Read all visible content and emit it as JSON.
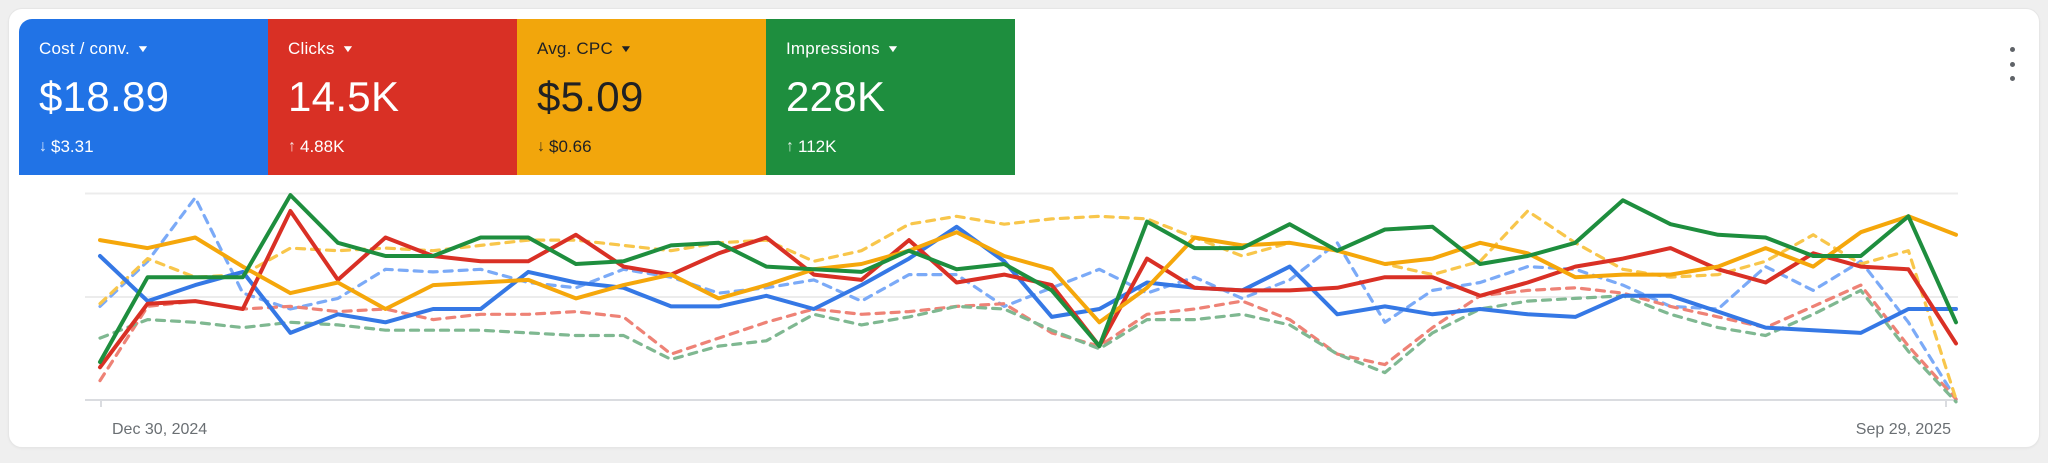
{
  "scorecards": [
    {
      "label": "Cost / conv.",
      "value": "$18.89",
      "delta_arrow": "↓",
      "delta_value": "$3.31",
      "delta_direction": "down",
      "color": "#2173E6",
      "text_color": "#FFFFFF"
    },
    {
      "label": "Clicks",
      "value": "14.5K",
      "delta_arrow": "↑",
      "delta_value": "4.88K",
      "delta_direction": "up",
      "color": "#D93025",
      "text_color": "#FFFFFF"
    },
    {
      "label": "Avg. CPC",
      "value": "$5.09",
      "delta_arrow": "↓",
      "delta_value": "$0.66",
      "delta_direction": "down",
      "color": "#F2A60C",
      "text_color": "#202124"
    },
    {
      "label": "Impressions",
      "value": "228K",
      "delta_arrow": "↑",
      "delta_value": "112K",
      "delta_direction": "up",
      "color": "#1E8E3E",
      "text_color": "#FFFFFF"
    }
  ],
  "ui": {
    "dropdown_glyph": "▼",
    "more_options_icon": "kebab-menu"
  },
  "chart_data": {
    "type": "line",
    "title": "",
    "xlabel": "",
    "ylabel": "",
    "grid": "horizontal",
    "legend_position": "none",
    "x_axis": {
      "start_label": "Dec 30, 2024",
      "end_label": "Sep 29, 2025",
      "granularity": "weekly",
      "points": 40
    },
    "y_axis": {
      "visible": false,
      "unit": "relative scale 0-100 (axis unlabeled in UI)",
      "ylim": [
        0,
        100
      ]
    },
    "series": [
      {
        "id": "cost-conv-previous",
        "name": "Cost / conv. (previous period)",
        "period": "previous",
        "style": "dotted",
        "color": "#7BAAF7",
        "values": [
          41,
          58,
          82,
          46,
          40,
          44,
          55,
          54,
          55,
          50,
          48,
          55,
          52,
          46,
          48,
          51,
          43,
          53,
          53,
          41,
          48,
          55,
          46,
          52,
          44,
          51,
          65,
          35,
          47,
          50,
          56,
          55,
          49,
          41,
          40,
          56,
          47,
          58,
          35,
          6
        ]
      },
      {
        "id": "clicks-previous",
        "name": "Clicks (previous period)",
        "period": "previous",
        "style": "dotted",
        "color": "#EE8276",
        "values": [
          13,
          41,
          43,
          40,
          41,
          39,
          40,
          36,
          38,
          38,
          39,
          37,
          23,
          29,
          35,
          40,
          38,
          39,
          41,
          42,
          31,
          26,
          38,
          40,
          43,
          36,
          23,
          19,
          33,
          45,
          47,
          48,
          46,
          41,
          37,
          33,
          41,
          49,
          26,
          6
        ]
      },
      {
        "id": "avg-cpc-previous",
        "name": "Avg. CPC (previous period)",
        "period": "previous",
        "style": "dotted",
        "color": "#F8C64B",
        "values": [
          42,
          59,
          52,
          53,
          63,
          62,
          63,
          62,
          64,
          66,
          66,
          64,
          62,
          65,
          66,
          58,
          62,
          72,
          75,
          72,
          74,
          75,
          74,
          67,
          60,
          65,
          62,
          57,
          53,
          58,
          77,
          65,
          55,
          52,
          53,
          58,
          68,
          57,
          62,
          6
        ]
      },
      {
        "id": "impressions-previous",
        "name": "Impressions (previous period)",
        "period": "previous",
        "style": "dotted",
        "color": "#7FB891",
        "values": [
          29,
          36,
          35,
          33,
          35,
          34,
          32,
          32,
          32,
          31,
          30,
          30,
          21,
          26,
          28,
          38,
          34,
          37,
          41,
          40,
          32,
          25,
          36,
          36,
          38,
          34,
          23,
          16,
          31,
          40,
          43,
          44,
          45,
          38,
          33,
          30,
          38,
          47,
          24,
          5
        ]
      },
      {
        "id": "cost-conv-current",
        "name": "Cost / conv.",
        "period": "current",
        "style": "solid",
        "color": "#3578E5",
        "values": [
          60,
          43,
          49,
          54,
          31,
          38,
          35,
          40,
          40,
          54,
          50,
          48,
          41,
          41,
          45,
          40,
          49,
          59,
          71,
          58,
          37,
          40,
          50,
          48,
          47,
          56,
          38,
          41,
          38,
          40,
          38,
          37,
          45,
          45,
          39,
          33,
          32,
          31,
          40,
          40
        ]
      },
      {
        "id": "clicks-current",
        "name": "Clicks",
        "period": "current",
        "style": "solid",
        "color": "#D93025",
        "values": [
          18,
          42,
          43,
          40,
          77,
          51,
          67,
          60,
          58,
          58,
          68,
          56,
          53,
          61,
          67,
          53,
          51,
          66,
          50,
          53,
          49,
          26,
          59,
          48,
          47,
          47,
          48,
          52,
          52,
          45,
          50,
          56,
          59,
          63,
          55,
          50,
          61,
          56,
          55,
          27
        ]
      },
      {
        "id": "avg-cpc-current",
        "name": "Avg. CPC",
        "period": "current",
        "style": "solid",
        "color": "#F5A70B",
        "values": [
          66,
          63,
          67,
          56,
          46,
          50,
          40,
          49,
          50,
          51,
          44,
          49,
          53,
          44,
          49,
          55,
          57,
          62,
          69,
          60,
          55,
          35,
          48,
          67,
          64,
          65,
          62,
          57,
          59,
          65,
          61,
          52,
          53,
          53,
          56,
          63,
          56,
          69,
          75,
          68
        ]
      },
      {
        "id": "impressions-current",
        "name": "Impressions",
        "period": "current",
        "style": "solid",
        "color": "#1E8E3E",
        "values": [
          20,
          52,
          52,
          52,
          83,
          65,
          60,
          60,
          67,
          67,
          57,
          58,
          64,
          65,
          56,
          55,
          54,
          62,
          55,
          57,
          47,
          26,
          73,
          63,
          63,
          72,
          62,
          70,
          71,
          57,
          60,
          65,
          81,
          72,
          68,
          67,
          60,
          60,
          75,
          35
        ]
      }
    ]
  }
}
